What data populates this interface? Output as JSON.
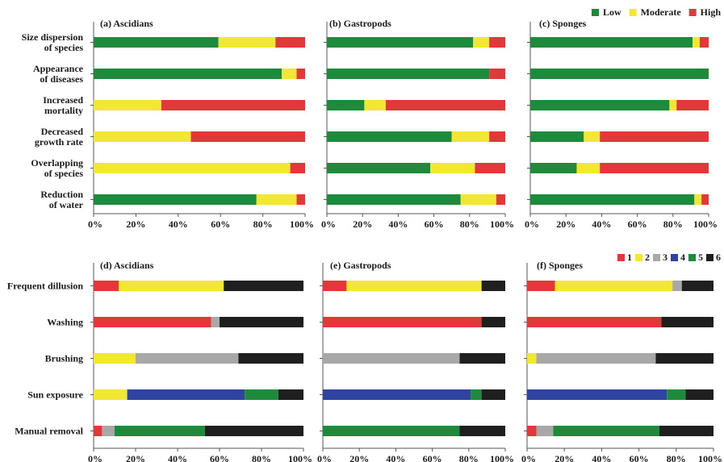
{
  "colors": {
    "low": "#1e8a3c",
    "moderate": "#f2e833",
    "high": "#e2383a",
    "c1": "#e2383a",
    "c2": "#f2e833",
    "c3": "#a8a8a8",
    "c4": "#2f43a0",
    "c5": "#1e8a3c",
    "c6": "#1f1f1f"
  },
  "chart_data": [
    {
      "type": "bar",
      "stacked": true,
      "orientation": "horizontal",
      "title": "(a) Ascidians",
      "categories": [
        [
          "Size dispersion",
          "of species"
        ],
        [
          "Appearance",
          "of diseases"
        ],
        [
          "Increased",
          "mortality"
        ],
        [
          "Decreased",
          "growth rate"
        ],
        [
          "Overlapping",
          "of species"
        ],
        [
          "Reduction",
          "of water"
        ]
      ],
      "series": [
        {
          "name": "Low",
          "color_key": "low",
          "values": [
            59,
            89,
            0,
            0,
            0,
            77
          ]
        },
        {
          "name": "Moderate",
          "color_key": "moderate",
          "values": [
            27,
            7,
            32,
            46,
            93,
            19
          ]
        },
        {
          "name": "High",
          "color_key": "high",
          "values": [
            14,
            4,
            68,
            54,
            7,
            4
          ]
        }
      ],
      "xlim": [
        0,
        100
      ],
      "xticks": [
        "0%",
        "20%",
        "40%",
        "60%",
        "80%",
        "100%"
      ]
    },
    {
      "type": "bar",
      "stacked": true,
      "orientation": "horizontal",
      "title": "(b) Gastropods",
      "categories": [
        "",
        "",
        "",
        "",
        "",
        ""
      ],
      "series": [
        {
          "name": "Low",
          "color_key": "low",
          "values": [
            82,
            91,
            21,
            70,
            58,
            75
          ]
        },
        {
          "name": "Moderate",
          "color_key": "moderate",
          "values": [
            9,
            0,
            12,
            21,
            25,
            20
          ]
        },
        {
          "name": "High",
          "color_key": "high",
          "values": [
            9,
            9,
            67,
            9,
            17,
            5
          ]
        }
      ],
      "xlim": [
        0,
        100
      ],
      "xticks": [
        "0%",
        "20%",
        "40%",
        "60%",
        "80%",
        "100%"
      ]
    },
    {
      "type": "bar",
      "stacked": true,
      "orientation": "horizontal",
      "title": "(c) Sponges",
      "categories": [
        "",
        "",
        "",
        "",
        "",
        ""
      ],
      "series": [
        {
          "name": "Low",
          "color_key": "low",
          "values": [
            91,
            100,
            78,
            30,
            26,
            92
          ]
        },
        {
          "name": "Moderate",
          "color_key": "moderate",
          "values": [
            4,
            0,
            4,
            9,
            13,
            4
          ]
        },
        {
          "name": "High",
          "color_key": "high",
          "values": [
            5,
            0,
            18,
            61,
            61,
            4
          ]
        }
      ],
      "xlim": [
        0,
        100
      ],
      "xticks": [
        "0%",
        "20%",
        "40%",
        "60%",
        "80%",
        "100%"
      ]
    },
    {
      "type": "bar",
      "stacked": true,
      "orientation": "horizontal",
      "title": "(d) Ascidians",
      "categories": [
        [
          "Frequent dillusion"
        ],
        [
          "Washing"
        ],
        [
          "Brushing"
        ],
        [
          "Sun exposure"
        ],
        [
          "Manual removal"
        ]
      ],
      "series": [
        {
          "name": "1",
          "color_key": "c1",
          "values": [
            12,
            56,
            0,
            0,
            4
          ]
        },
        {
          "name": "2",
          "color_key": "c2",
          "values": [
            50,
            0,
            20,
            16,
            0
          ]
        },
        {
          "name": "3",
          "color_key": "c3",
          "values": [
            0,
            4,
            49,
            0,
            6
          ]
        },
        {
          "name": "4",
          "color_key": "c4",
          "values": [
            0,
            0,
            0,
            56,
            0
          ]
        },
        {
          "name": "5",
          "color_key": "c5",
          "values": [
            0,
            0,
            0,
            16,
            43
          ]
        },
        {
          "name": "6",
          "color_key": "c6",
          "values": [
            38,
            40,
            31,
            12,
            47
          ]
        }
      ],
      "xlim": [
        0,
        100
      ],
      "xticks": [
        "0%",
        "20%",
        "40%",
        "60%",
        "80%",
        "100%"
      ]
    },
    {
      "type": "bar",
      "stacked": true,
      "orientation": "horizontal",
      "title": "(e) Gastropods",
      "categories": [
        "",
        "",
        "",
        "",
        ""
      ],
      "series": [
        {
          "name": "1",
          "color_key": "c1",
          "values": [
            13,
            87,
            0,
            0,
            0
          ]
        },
        {
          "name": "2",
          "color_key": "c2",
          "values": [
            74,
            0,
            0,
            0,
            0
          ]
        },
        {
          "name": "3",
          "color_key": "c3",
          "values": [
            0,
            0,
            75,
            0,
            0
          ]
        },
        {
          "name": "4",
          "color_key": "c4",
          "values": [
            0,
            0,
            0,
            81,
            0
          ]
        },
        {
          "name": "5",
          "color_key": "c5",
          "values": [
            0,
            0,
            0,
            6,
            75
          ]
        },
        {
          "name": "6",
          "color_key": "c6",
          "values": [
            13,
            13,
            25,
            13,
            25
          ]
        }
      ],
      "xlim": [
        0,
        100
      ],
      "xticks": [
        "0%",
        "20%",
        "40%",
        "60%",
        "80%",
        "100%"
      ]
    },
    {
      "type": "bar",
      "stacked": true,
      "orientation": "horizontal",
      "title": "(f) Sponges",
      "categories": [
        "",
        "",
        "",
        "",
        ""
      ],
      "series": [
        {
          "name": "1",
          "color_key": "c1",
          "values": [
            15,
            72,
            0,
            0,
            5
          ]
        },
        {
          "name": "2",
          "color_key": "c2",
          "values": [
            63,
            0,
            5,
            0,
            0
          ]
        },
        {
          "name": "3",
          "color_key": "c3",
          "values": [
            5,
            0,
            64,
            0,
            9
          ]
        },
        {
          "name": "4",
          "color_key": "c4",
          "values": [
            0,
            0,
            0,
            75,
            0
          ]
        },
        {
          "name": "5",
          "color_key": "c5",
          "values": [
            0,
            0,
            0,
            10,
            57
          ]
        },
        {
          "name": "6",
          "color_key": "c6",
          "values": [
            17,
            28,
            31,
            15,
            29
          ]
        }
      ],
      "xlim": [
        0,
        100
      ],
      "xticks": [
        "0%",
        "20%",
        "40%",
        "60%",
        "80%",
        "100%"
      ]
    }
  ],
  "legends": {
    "top": {
      "placement": "top-right",
      "items": [
        {
          "label": "Low",
          "color_key": "low"
        },
        {
          "label": "Moderate",
          "color_key": "moderate"
        },
        {
          "label": "High",
          "color_key": "high"
        }
      ]
    },
    "bottom": {
      "placement": "top-right of panel (f)",
      "items": [
        {
          "label": "1",
          "color_key": "c1"
        },
        {
          "label": "2",
          "color_key": "c2"
        },
        {
          "label": "3",
          "color_key": "c3"
        },
        {
          "label": "4",
          "color_key": "c4"
        },
        {
          "label": "5",
          "color_key": "c5"
        },
        {
          "label": "6",
          "color_key": "c6"
        }
      ]
    }
  }
}
